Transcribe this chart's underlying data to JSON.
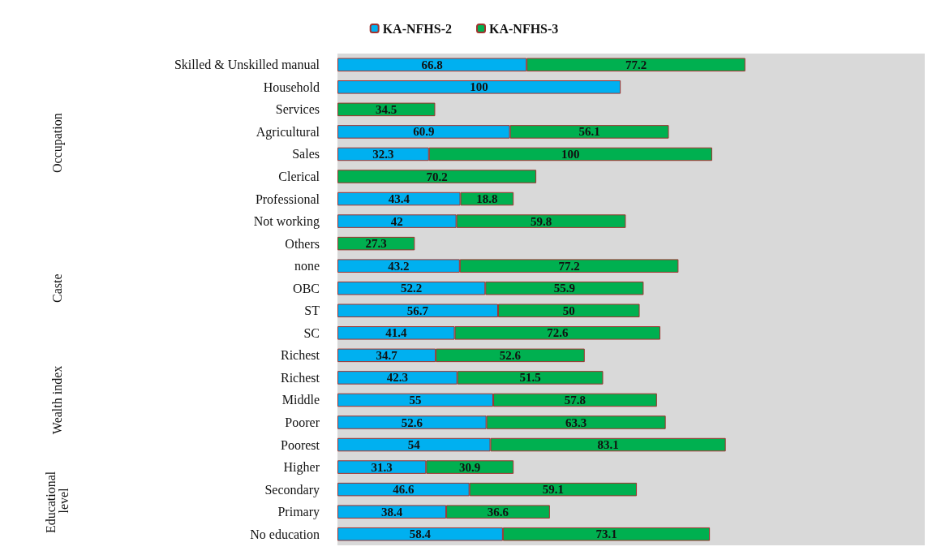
{
  "chart_data": {
    "type": "bar",
    "orientation": "horizontal",
    "stacked": true,
    "data_labels": true,
    "legend": "top",
    "categories": [
      "Skilled & Unskilled manual",
      "Household",
      "Services",
      "Agricultural",
      "Sales",
      "Clerical",
      "Professional",
      "Not working",
      "Others",
      "none",
      "OBC",
      "ST",
      "SC",
      "Richest",
      "Richest",
      "Middle",
      "Poorer",
      "Poorest",
      "Higher",
      "Secondary",
      "Primary",
      "No education"
    ],
    "series": [
      {
        "name": "KA-NFHS-2",
        "color": "#00b0f0",
        "values": [
          66.8,
          100,
          null,
          60.9,
          32.3,
          null,
          43.4,
          42,
          null,
          43.2,
          52.2,
          56.7,
          41.4,
          34.7,
          42.3,
          55,
          52.6,
          54,
          31.3,
          46.6,
          38.4,
          58.4
        ]
      },
      {
        "name": "KA-NFHS-3",
        "color": "#00b050",
        "values": [
          77.2,
          null,
          34.5,
          56.1,
          100,
          70.2,
          18.8,
          59.8,
          27.3,
          77.2,
          55.9,
          50,
          72.6,
          52.6,
          51.5,
          57.8,
          63.3,
          83.1,
          30.9,
          59.1,
          36.6,
          73.1
        ]
      }
    ],
    "annotations": [
      "Occupation",
      "Caste",
      "Wealth index",
      "Educational level"
    ]
  }
}
